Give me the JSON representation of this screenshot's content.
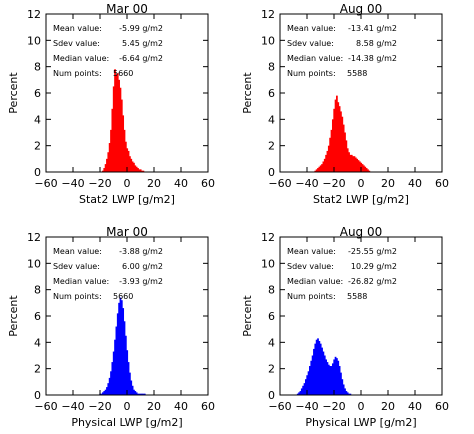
{
  "chart_data": [
    {
      "type": "bar",
      "title": "Mar 00",
      "xlabel": "Stat2 LWP [g/m2]",
      "ylabel": "Percent",
      "xlim": [
        -60,
        60
      ],
      "ylim": [
        0,
        12
      ],
      "xticks": [
        -60,
        -40,
        -20,
        0,
        20,
        40,
        60
      ],
      "yticks": [
        0,
        2,
        4,
        6,
        8,
        10,
        12
      ],
      "color": "#ff0000",
      "stats": [
        {
          "label": "Mean value:",
          "value": "-5.99 g/m2"
        },
        {
          "label": "Sdev value:",
          "value": "5.45 g/m2"
        },
        {
          "label": "Median value:",
          "value": "-6.64 g/m2"
        },
        {
          "label": "Num points:",
          "value": "5660"
        }
      ],
      "bin_width": 1,
      "bins": [
        {
          "x": -18,
          "y": 0.1
        },
        {
          "x": -17,
          "y": 0.3
        },
        {
          "x": -16,
          "y": 0.6
        },
        {
          "x": -15,
          "y": 1.0
        },
        {
          "x": -14,
          "y": 1.5
        },
        {
          "x": -13,
          "y": 2.2
        },
        {
          "x": -12,
          "y": 3.2
        },
        {
          "x": -11,
          "y": 4.8
        },
        {
          "x": -10,
          "y": 6.5
        },
        {
          "x": -9,
          "y": 7.8
        },
        {
          "x": -8,
          "y": 7.4
        },
        {
          "x": -7,
          "y": 7.5
        },
        {
          "x": -6,
          "y": 7.0
        },
        {
          "x": -5,
          "y": 6.4
        },
        {
          "x": -4,
          "y": 5.5
        },
        {
          "x": -3,
          "y": 4.3
        },
        {
          "x": -2,
          "y": 3.2
        },
        {
          "x": -1,
          "y": 2.3
        },
        {
          "x": 0,
          "y": 1.8
        },
        {
          "x": 1,
          "y": 1.6
        },
        {
          "x": 2,
          "y": 1.2
        },
        {
          "x": 3,
          "y": 1.0
        },
        {
          "x": 4,
          "y": 0.8
        },
        {
          "x": 5,
          "y": 0.7
        },
        {
          "x": 6,
          "y": 0.5
        },
        {
          "x": 7,
          "y": 0.4
        },
        {
          "x": 8,
          "y": 0.3
        },
        {
          "x": 9,
          "y": 0.2
        },
        {
          "x": 10,
          "y": 0.2
        },
        {
          "x": 11,
          "y": 0.1
        },
        {
          "x": 12,
          "y": 0.1
        }
      ]
    },
    {
      "type": "bar",
      "title": "Aug 00",
      "xlabel": "Stat2 LWP [g/m2]",
      "ylabel": "Percent",
      "xlim": [
        -60,
        60
      ],
      "ylim": [
        0,
        12
      ],
      "xticks": [
        -60,
        -40,
        -20,
        0,
        20,
        40,
        60
      ],
      "yticks": [
        0,
        2,
        4,
        6,
        8,
        10,
        12
      ],
      "color": "#ff0000",
      "stats": [
        {
          "label": "Mean value:",
          "value": "-13.41 g/m2"
        },
        {
          "label": "Sdev value:",
          "value": "8.58 g/m2"
        },
        {
          "label": "Median value:",
          "value": "-14.38 g/m2"
        },
        {
          "label": "Num points:",
          "value": "5588"
        }
      ],
      "bin_width": 1,
      "bins": [
        {
          "x": -34,
          "y": 0.1
        },
        {
          "x": -33,
          "y": 0.2
        },
        {
          "x": -32,
          "y": 0.3
        },
        {
          "x": -31,
          "y": 0.4
        },
        {
          "x": -30,
          "y": 0.5
        },
        {
          "x": -29,
          "y": 0.6
        },
        {
          "x": -28,
          "y": 0.8
        },
        {
          "x": -27,
          "y": 1.0
        },
        {
          "x": -26,
          "y": 1.3
        },
        {
          "x": -25,
          "y": 1.6
        },
        {
          "x": -24,
          "y": 2.0
        },
        {
          "x": -23,
          "y": 2.6
        },
        {
          "x": -22,
          "y": 3.2
        },
        {
          "x": -21,
          "y": 4.0
        },
        {
          "x": -20,
          "y": 4.8
        },
        {
          "x": -19,
          "y": 5.5
        },
        {
          "x": -18,
          "y": 5.8
        },
        {
          "x": -17,
          "y": 5.3
        },
        {
          "x": -16,
          "y": 5.0
        },
        {
          "x": -15,
          "y": 4.6
        },
        {
          "x": -14,
          "y": 4.2
        },
        {
          "x": -13,
          "y": 3.6
        },
        {
          "x": -12,
          "y": 3.0
        },
        {
          "x": -11,
          "y": 2.4
        },
        {
          "x": -10,
          "y": 1.8
        },
        {
          "x": -9,
          "y": 1.5
        },
        {
          "x": -8,
          "y": 1.3
        },
        {
          "x": -7,
          "y": 1.3
        },
        {
          "x": -6,
          "y": 1.2
        },
        {
          "x": -5,
          "y": 1.2
        },
        {
          "x": -4,
          "y": 1.1
        },
        {
          "x": -3,
          "y": 1.0
        },
        {
          "x": -2,
          "y": 0.9
        },
        {
          "x": -1,
          "y": 0.8
        },
        {
          "x": 0,
          "y": 0.7
        },
        {
          "x": 1,
          "y": 0.6
        },
        {
          "x": 2,
          "y": 0.5
        },
        {
          "x": 3,
          "y": 0.4
        },
        {
          "x": 4,
          "y": 0.3
        },
        {
          "x": 5,
          "y": 0.2
        },
        {
          "x": 6,
          "y": 0.1
        }
      ]
    },
    {
      "type": "bar",
      "title": "Mar 00",
      "xlabel": "Physical LWP [g/m2]",
      "ylabel": "Percent",
      "xlim": [
        -60,
        60
      ],
      "ylim": [
        0,
        12
      ],
      "xticks": [
        -60,
        -40,
        -20,
        0,
        20,
        40,
        60
      ],
      "yticks": [
        0,
        2,
        4,
        6,
        8,
        10,
        12
      ],
      "color": "#0000ff",
      "stats": [
        {
          "label": "Mean value:",
          "value": "-3.88 g/m2"
        },
        {
          "label": "Sdev value:",
          "value": "6.00 g/m2"
        },
        {
          "label": "Median value:",
          "value": "-3.93 g/m2"
        },
        {
          "label": "Num points:",
          "value": "5660"
        }
      ],
      "bin_width": 1,
      "bins": [
        {
          "x": -20,
          "y": 0.1
        },
        {
          "x": -19,
          "y": 0.1
        },
        {
          "x": -18,
          "y": 0.2
        },
        {
          "x": -17,
          "y": 0.3
        },
        {
          "x": -16,
          "y": 0.4
        },
        {
          "x": -15,
          "y": 0.6
        },
        {
          "x": -14,
          "y": 0.9
        },
        {
          "x": -13,
          "y": 1.3
        },
        {
          "x": -12,
          "y": 1.8
        },
        {
          "x": -11,
          "y": 2.5
        },
        {
          "x": -10,
          "y": 3.3
        },
        {
          "x": -9,
          "y": 4.2
        },
        {
          "x": -8,
          "y": 5.2
        },
        {
          "x": -7,
          "y": 6.2
        },
        {
          "x": -6,
          "y": 7.0
        },
        {
          "x": -5,
          "y": 7.4
        },
        {
          "x": -4,
          "y": 7.2
        },
        {
          "x": -3,
          "y": 6.6
        },
        {
          "x": -2,
          "y": 5.6
        },
        {
          "x": -1,
          "y": 4.5
        },
        {
          "x": 0,
          "y": 3.4
        },
        {
          "x": 1,
          "y": 2.5
        },
        {
          "x": 2,
          "y": 1.7
        },
        {
          "x": 3,
          "y": 1.1
        },
        {
          "x": 4,
          "y": 0.7
        },
        {
          "x": 5,
          "y": 0.4
        },
        {
          "x": 6,
          "y": 0.3
        },
        {
          "x": 7,
          "y": 0.2
        },
        {
          "x": 8,
          "y": 0.1
        },
        {
          "x": 9,
          "y": 0.1
        },
        {
          "x": 10,
          "y": 0.1
        },
        {
          "x": 11,
          "y": 0.1
        },
        {
          "x": 12,
          "y": 0.1
        },
        {
          "x": 13,
          "y": 0.1
        }
      ]
    },
    {
      "type": "bar",
      "title": "Aug 00",
      "xlabel": "Physical LWP [g/m2]",
      "ylabel": "Percent",
      "xlim": [
        -60,
        60
      ],
      "ylim": [
        0,
        12
      ],
      "xticks": [
        -60,
        -40,
        -20,
        0,
        20,
        40,
        60
      ],
      "yticks": [
        0,
        2,
        4,
        6,
        8,
        10,
        12
      ],
      "color": "#0000ff",
      "stats": [
        {
          "label": "Mean value:",
          "value": "-25.55 g/m2"
        },
        {
          "label": "Sdev value:",
          "value": "10.29 g/m2"
        },
        {
          "label": "Median value:",
          "value": "-26.82 g/m2"
        },
        {
          "label": "Num points:",
          "value": "5588"
        }
      ],
      "bin_width": 1,
      "bins": [
        {
          "x": -47,
          "y": 0.1
        },
        {
          "x": -46,
          "y": 0.2
        },
        {
          "x": -45,
          "y": 0.3
        },
        {
          "x": -44,
          "y": 0.5
        },
        {
          "x": -43,
          "y": 0.7
        },
        {
          "x": -42,
          "y": 0.9
        },
        {
          "x": -41,
          "y": 1.2
        },
        {
          "x": -40,
          "y": 1.5
        },
        {
          "x": -39,
          "y": 1.8
        },
        {
          "x": -38,
          "y": 2.2
        },
        {
          "x": -37,
          "y": 2.6
        },
        {
          "x": -36,
          "y": 3.0
        },
        {
          "x": -35,
          "y": 3.5
        },
        {
          "x": -34,
          "y": 3.9
        },
        {
          "x": -33,
          "y": 4.2
        },
        {
          "x": -32,
          "y": 4.3
        },
        {
          "x": -31,
          "y": 4.1
        },
        {
          "x": -30,
          "y": 3.9
        },
        {
          "x": -29,
          "y": 3.6
        },
        {
          "x": -28,
          "y": 3.3
        },
        {
          "x": -27,
          "y": 3.0
        },
        {
          "x": -26,
          "y": 2.7
        },
        {
          "x": -25,
          "y": 2.5
        },
        {
          "x": -24,
          "y": 2.3
        },
        {
          "x": -23,
          "y": 2.2
        },
        {
          "x": -22,
          "y": 2.2
        },
        {
          "x": -21,
          "y": 2.4
        },
        {
          "x": -20,
          "y": 2.7
        },
        {
          "x": -19,
          "y": 2.9
        },
        {
          "x": -18,
          "y": 2.8
        },
        {
          "x": -17,
          "y": 2.6
        },
        {
          "x": -16,
          "y": 2.2
        },
        {
          "x": -15,
          "y": 1.7
        },
        {
          "x": -14,
          "y": 1.2
        },
        {
          "x": -13,
          "y": 0.8
        },
        {
          "x": -12,
          "y": 0.5
        },
        {
          "x": -11,
          "y": 0.3
        },
        {
          "x": -10,
          "y": 0.2
        },
        {
          "x": -9,
          "y": 0.1
        },
        {
          "x": -8,
          "y": 0.1
        }
      ]
    }
  ]
}
